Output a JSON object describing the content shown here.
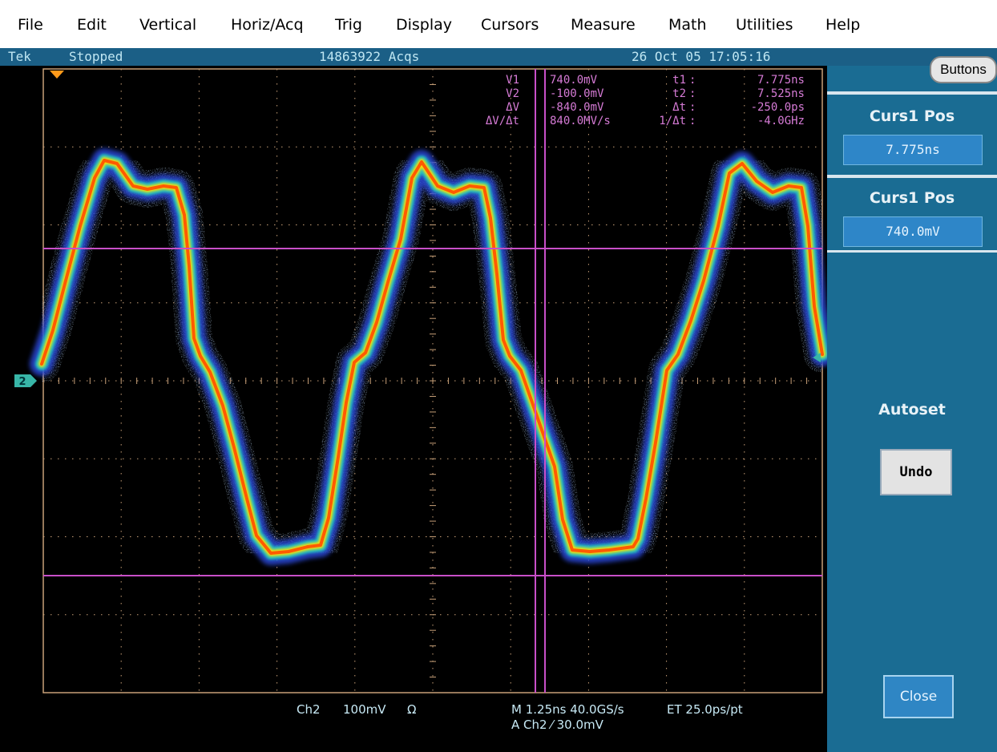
{
  "menu": [
    "File",
    "Edit",
    "Vertical",
    "Horiz/Acq",
    "Trig",
    "Display",
    "Cursors",
    "Measure",
    "Math",
    "Utilities",
    "Help"
  ],
  "status": {
    "brand": "Tek",
    "state": "Stopped",
    "acquisitions": "14863922 Acqs",
    "datetime": "26 Oct 05 17:05:16"
  },
  "readout": {
    "v1_label": "V1",
    "v1_value": "740.0mV",
    "v2_label": "V2",
    "v2_value": "-100.0mV",
    "dv_label": "ΔV",
    "dv_value": "-840.0mV",
    "dvdt_label": "ΔV/Δt",
    "dvdt_value": "840.0MV/s",
    "t1_label": "t1",
    "t1_value": "7.775ns",
    "t2_label": "t2",
    "t2_value": "7.525ns",
    "dt_label": "Δt",
    "dt_value": "-250.0ps",
    "inv_dt_label": "1/Δt",
    "inv_dt_value": "-4.0GHz"
  },
  "channel_marker": "2",
  "bottom": {
    "channel": "Ch2",
    "scale": "100mV",
    "coupling": "Ω",
    "horizontal": "M 1.25ns 40.0GS/s",
    "et": "ET 25.0ps/pt",
    "trigger": "A  Ch2  ⁄  30.0mV"
  },
  "panel": {
    "buttons_label": "Buttons",
    "curs1_time_title": "Curs1 Pos",
    "curs1_time_value": "7.775ns",
    "curs1_volt_title": "Curs1 Pos",
    "curs1_volt_value": "740.0mV",
    "autoset_title": "Autoset",
    "undo_label": "Undo",
    "close_label": "Close"
  },
  "colors": {
    "status_bar": "#1b5f86",
    "panel": "#1a6c93",
    "cursor": "#c84fc8",
    "grid": "#c8a078",
    "trace_core": "#ff5a00",
    "trace_mid": "#ffe000",
    "trace_outer": "#21c0c0",
    "trace_halo": "#2a47d6"
  }
}
